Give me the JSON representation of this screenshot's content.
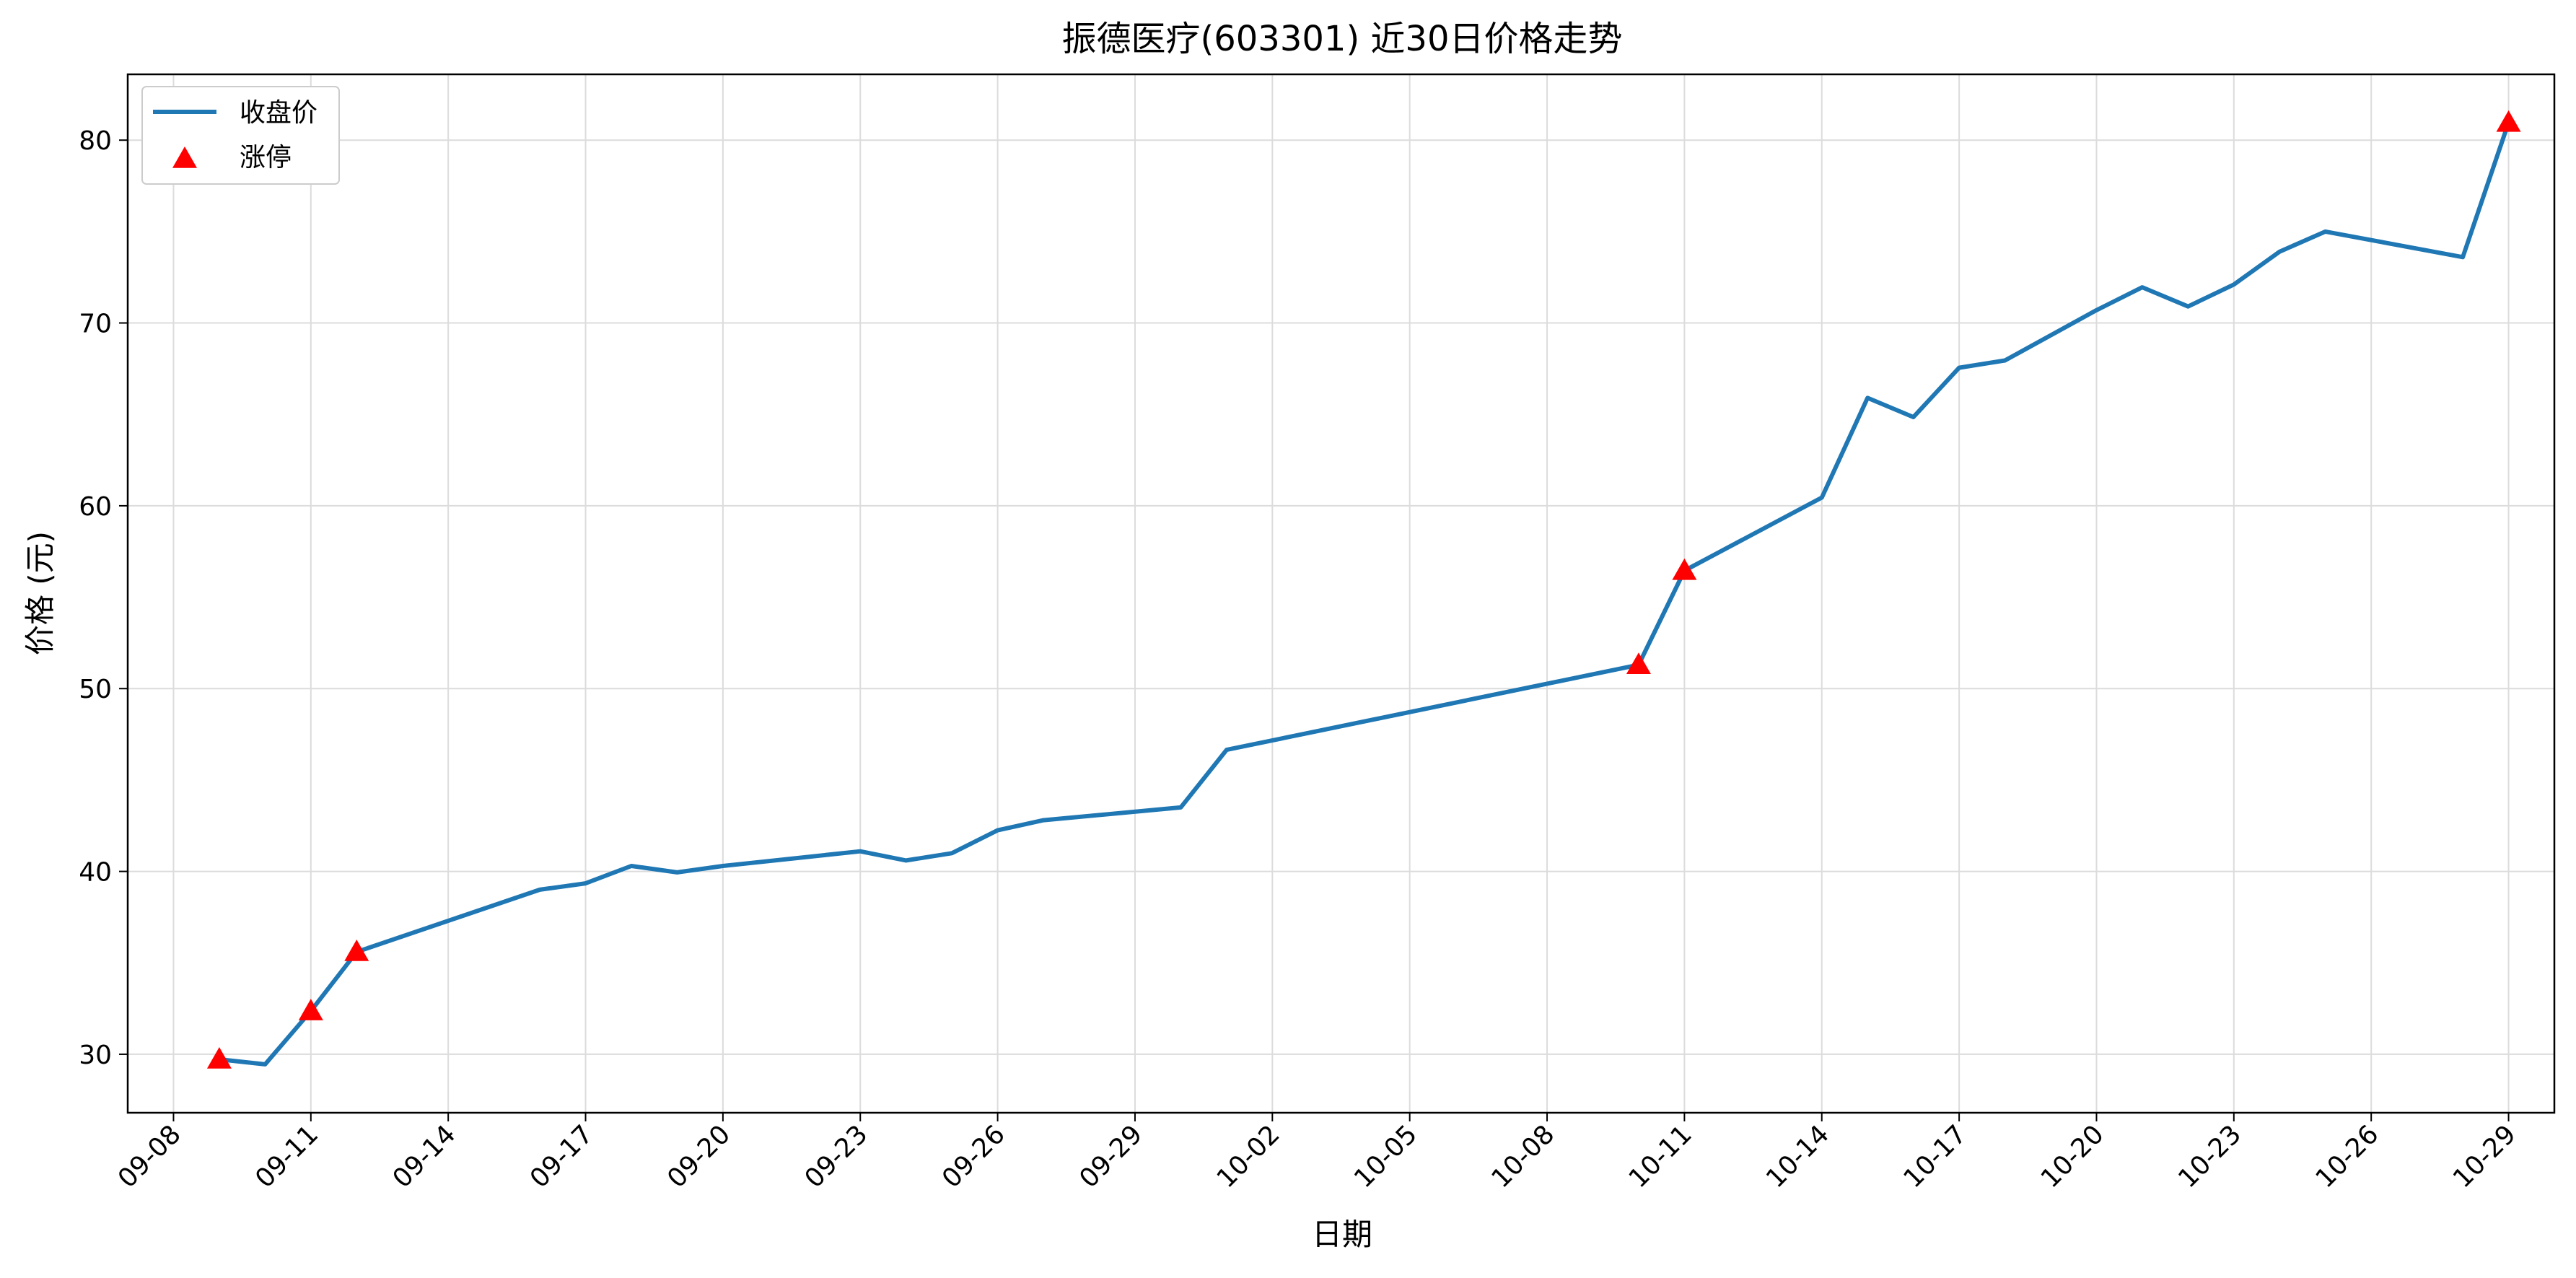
{
  "chart_data": {
    "type": "line",
    "title": "振德医疗(603301) 近30日价格走势",
    "xlabel": "日期",
    "ylabel": "价格 (元)",
    "x_axis": {
      "type": "date",
      "year": 2024,
      "min": "09-07",
      "max": "10-30"
    },
    "ylim": [
      26.8,
      83.6
    ],
    "yticks": [
      30,
      40,
      50,
      60,
      70,
      80
    ],
    "xticks": [
      "09-08",
      "09-11",
      "09-14",
      "09-17",
      "09-20",
      "09-23",
      "09-26",
      "09-29",
      "10-02",
      "10-05",
      "10-08",
      "10-11",
      "10-14",
      "10-17",
      "10-20",
      "10-23",
      "10-26",
      "10-29"
    ],
    "grid": true,
    "legend": {
      "position": "top-left",
      "entries": [
        "收盘价",
        "涨停"
      ]
    },
    "colors": {
      "line": "#1f77b4",
      "marker": "#ff0000"
    },
    "series": [
      {
        "name": "收盘价",
        "x": [
          "09-09",
          "09-10",
          "09-11",
          "09-12",
          "09-16",
          "09-17",
          "09-18",
          "09-19",
          "09-20",
          "09-23",
          "09-24",
          "09-25",
          "09-26",
          "09-27",
          "09-30",
          "10-01",
          "10-10",
          "10-11",
          "10-14",
          "10-15",
          "10-16",
          "10-17",
          "10-18",
          "10-20",
          "10-21",
          "10-22",
          "10-23",
          "10-24",
          "10-25",
          "10-28",
          "10-29"
        ],
        "values": [
          29.72,
          29.45,
          32.36,
          35.6,
          39.0,
          39.35,
          40.3,
          39.95,
          40.3,
          41.1,
          40.6,
          41.0,
          42.25,
          42.8,
          43.5,
          46.65,
          51.3,
          56.45,
          60.45,
          65.9,
          64.85,
          67.55,
          67.95,
          70.7,
          71.95,
          70.9,
          72.1,
          73.9,
          75.0,
          73.6,
          80.96
        ]
      },
      {
        "name": "涨停",
        "type": "scatter",
        "x": [
          "09-09",
          "09-11",
          "09-12",
          "10-10",
          "10-11",
          "10-29"
        ],
        "values": [
          29.72,
          32.36,
          35.6,
          51.3,
          56.45,
          80.96
        ]
      }
    ]
  }
}
